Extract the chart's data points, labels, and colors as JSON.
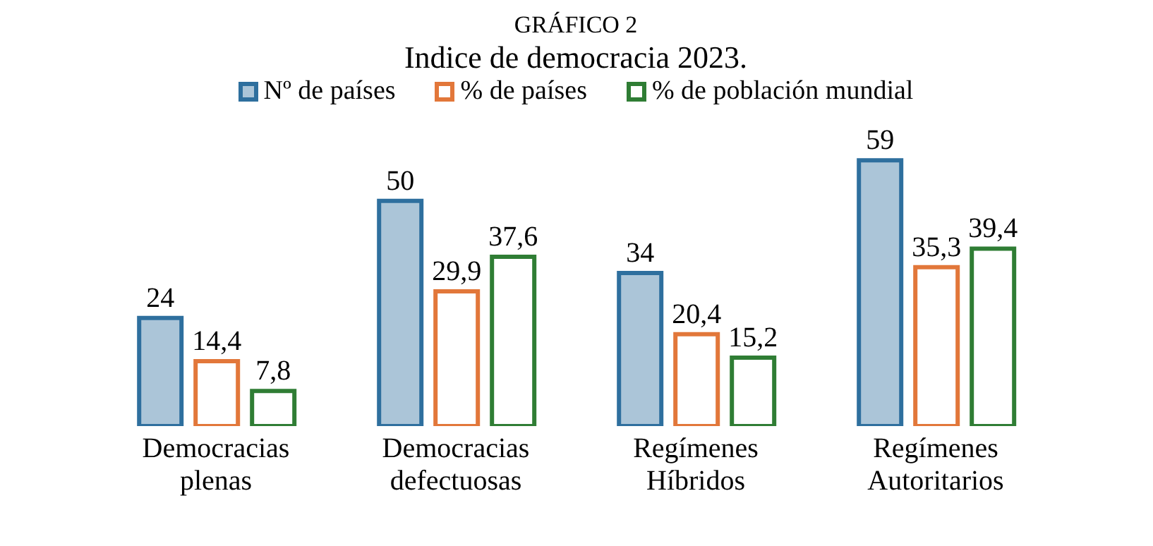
{
  "chart_data": {
    "type": "bar",
    "title": "GRÁFICO 2",
    "subtitle": "Indice de democracia 2023.",
    "categories": [
      "Democracias plenas",
      "Democracias defectuosas",
      "Regímenes Híbridos",
      "Regímenes Autoritarios"
    ],
    "series": [
      {
        "name": "Nº de países",
        "color": "#2e6f9e",
        "values": [
          24,
          50,
          34,
          59
        ],
        "value_labels": [
          "24",
          "50",
          "34",
          "59"
        ]
      },
      {
        "name": "% de países",
        "color": "#e2773a",
        "values": [
          14.4,
          29.9,
          20.4,
          35.3
        ],
        "value_labels": [
          "14,4",
          "29,9",
          "20,4",
          "35,3"
        ]
      },
      {
        "name": "% de población mundial",
        "color": "#2f7d34",
        "values": [
          7.8,
          37.6,
          15.2,
          39.4
        ],
        "value_labels": [
          "7,8",
          "37,6",
          "15,2",
          "39,4"
        ]
      }
    ],
    "legend": "top",
    "grid": false
  }
}
